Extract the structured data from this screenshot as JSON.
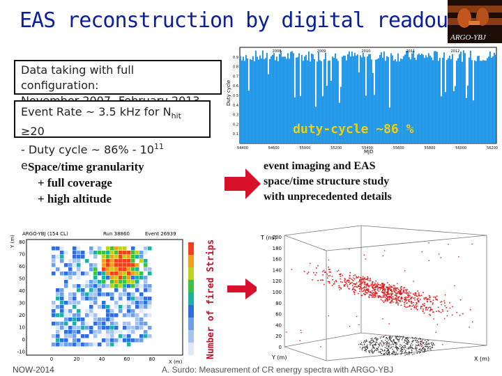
{
  "title": "EAS reconstruction by digital readout",
  "logo_text": "ARGO-YBJ",
  "box1": {
    "line1": "Data taking with full configuration:",
    "line2": "November 2007- February 2013"
  },
  "box2": {
    "line1_pre": "Event Rate ~ 3.5 kHz for N",
    "line1_sub": "hit",
    "line1_post": " ≥20",
    "line2_pre": "- Duty cycle ~ 86% - 10",
    "line2_sup": "11",
    "line2_post": " evts/yr"
  },
  "duty_label": "duty-cycle  ~86 %",
  "box3": {
    "line1": "Space/time granularity",
    "line2": "+ full coverage",
    "line3": "+ high altitude"
  },
  "box4": {
    "line1": "event imaging and EAS",
    "line2": "space/time structure study",
    "line3": "with unprecedented details"
  },
  "vertical_label": "Number of fired Strips",
  "footer_left": "NOW-2014",
  "footer_mid": "A. Surdo: Measurement of CR energy spectra with ARGO-YBJ",
  "chart_data": [
    {
      "type": "bar",
      "ylabel": "Duty cycle",
      "xlabel": "MJD",
      "x_ticks": [
        54400,
        54600,
        55000,
        55200,
        55400,
        55600,
        55800,
        56000,
        56200
      ],
      "top_ticks": [
        "2008",
        "2009",
        "2010",
        "2011",
        "2012"
      ],
      "y_ticks": [
        0.1,
        0.2,
        0.3,
        0.4,
        0.5,
        0.6,
        0.7,
        0.8,
        0.9
      ],
      "ylim": [
        0,
        1
      ],
      "approx_mean": 0.86
    },
    {
      "type": "heatmap",
      "header": [
        "ARGO-YBJ (154 CL)",
        "Run 38860",
        "Event 26939"
      ],
      "xlabel": "X (m)",
      "ylabel": "Y (m)",
      "x_ticks": [
        0,
        20,
        40,
        60,
        80
      ],
      "y_ticks": [
        -10,
        0,
        10,
        20,
        30,
        40,
        50,
        60,
        70,
        80
      ]
    },
    {
      "type": "scatter",
      "zlabel": "T (ns)",
      "xlabel": "X (m)",
      "ylabel": "Y (m)",
      "z_ticks": [
        0,
        20,
        40,
        60,
        80,
        100,
        120,
        140,
        160,
        180,
        200
      ],
      "x_ticks": [
        -20,
        0,
        20,
        40,
        60,
        80
      ],
      "y_ticks": [
        0,
        20,
        40,
        60,
        80,
        100
      ]
    }
  ],
  "colors": {
    "title": "#0a1ea0",
    "arrow": "#d8102a",
    "duty_bar": "#1e90e0",
    "duty_label": "#f0d000"
  }
}
